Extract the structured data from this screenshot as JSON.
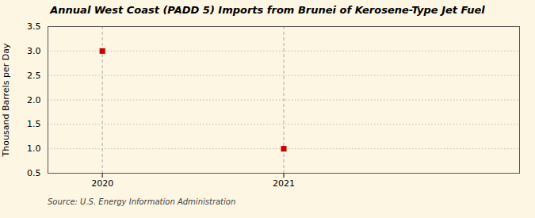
{
  "chart_data": {
    "type": "scatter",
    "title": "Annual West Coast (PADD 5) Imports from Brunei of Kerosene-Type Jet Fuel",
    "ylabel": "Thousand Barrels per Day",
    "annotations": [
      "Source: U.S. Energy Information Administration"
    ],
    "x": [
      2020,
      2021
    ],
    "values": [
      3.0,
      1.0
    ],
    "color": "#cc0000",
    "marker": "square",
    "xlim": [
      2019.7,
      2022.3
    ],
    "xticks": [
      2020,
      2021
    ],
    "ylim": [
      0.5,
      3.5
    ],
    "yticks": [
      0.5,
      {
        "value": 1.0,
        "label": "1.0"
      },
      1.5,
      {
        "value": 2.0,
        "label": "2.0"
      },
      2.5,
      {
        "value": 3.0,
        "label": "3.0"
      },
      3.5
    ],
    "grid": true
  }
}
